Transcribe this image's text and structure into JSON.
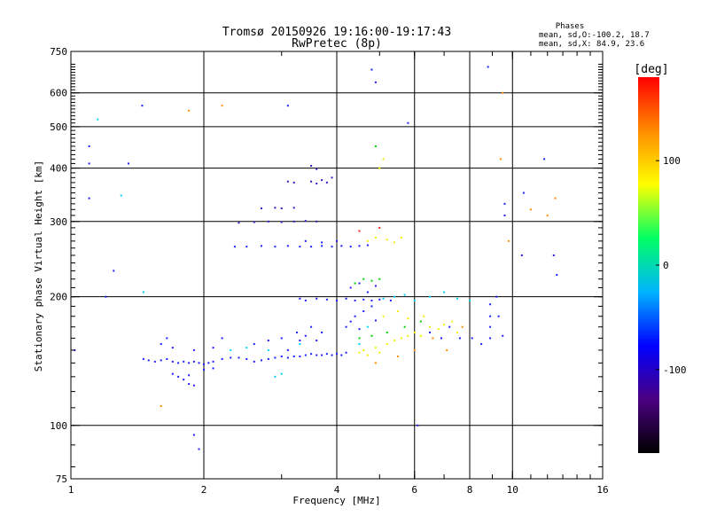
{
  "chart_data": {
    "type": "scatter",
    "title": "Tromsø 20150926 19:16:00-19:17:43",
    "subtitle": "RwPretec (8p)",
    "info_title": "Phases",
    "info_line1": "mean, sd,O:-100.2, 18.7",
    "info_line2": "mean, sd,X: 84.9, 23.6",
    "xlabel": "Frequency [MHz]",
    "ylabel": "Stationary phase Virtual Height [km]",
    "xscale": "log",
    "yscale": "log",
    "xlim": [
      1,
      16
    ],
    "ylim": [
      75,
      750
    ],
    "xticks": [
      1,
      2,
      4,
      6,
      8,
      10,
      16
    ],
    "yticks": [
      75,
      100,
      200,
      300,
      400,
      500,
      600,
      750
    ],
    "xgrid": [
      2,
      4,
      6,
      8,
      10
    ],
    "ygrid": [
      100,
      200,
      300,
      400,
      500,
      600
    ],
    "grid": true,
    "colorbar": {
      "label": "[deg]",
      "range": [
        -180,
        180
      ],
      "ticks": [
        100,
        0,
        -100
      ],
      "colors": [
        "#000000",
        "#4b0082",
        "#0000ff",
        "#00b4ff",
        "#00ff64",
        "#ffff00",
        "#ff8c00",
        "#ff0000"
      ]
    },
    "series": [
      {
        "color": "#1e1eff",
        "points": [
          [
            1.46,
            143
          ],
          [
            1.5,
            142
          ],
          [
            1.55,
            141
          ],
          [
            1.6,
            142
          ],
          [
            1.65,
            143
          ],
          [
            1.7,
            141
          ],
          [
            1.75,
            140
          ],
          [
            1.8,
            141
          ],
          [
            1.85,
            140
          ],
          [
            1.9,
            141
          ],
          [
            1.95,
            140
          ],
          [
            2.0,
            139
          ],
          [
            2.05,
            140
          ],
          [
            2.1,
            141
          ],
          [
            2.2,
            143
          ],
          [
            2.3,
            144
          ],
          [
            2.4,
            144
          ],
          [
            2.5,
            143
          ],
          [
            2.6,
            141
          ],
          [
            2.7,
            142
          ],
          [
            2.8,
            143
          ],
          [
            2.9,
            144
          ],
          [
            3.0,
            145
          ],
          [
            3.1,
            144
          ],
          [
            3.2,
            145
          ],
          [
            3.3,
            145
          ],
          [
            3.4,
            146
          ],
          [
            3.5,
            147
          ],
          [
            3.6,
            146
          ],
          [
            3.7,
            146
          ],
          [
            3.8,
            147
          ],
          [
            3.9,
            146
          ],
          [
            4.0,
            147
          ],
          [
            4.1,
            146
          ],
          [
            4.2,
            148
          ],
          [
            1.6,
            155
          ],
          [
            1.65,
            160
          ],
          [
            1.7,
            152
          ],
          [
            1.9,
            150
          ],
          [
            2.1,
            152
          ],
          [
            2.2,
            160
          ],
          [
            2.6,
            155
          ],
          [
            2.8,
            158
          ],
          [
            3.0,
            160
          ],
          [
            3.1,
            150
          ],
          [
            3.25,
            165
          ],
          [
            3.3,
            158
          ],
          [
            3.4,
            162
          ],
          [
            3.5,
            170
          ],
          [
            3.6,
            158
          ],
          [
            3.7,
            165
          ],
          [
            4.2,
            170
          ],
          [
            4.3,
            175
          ],
          [
            4.4,
            180
          ],
          [
            4.5,
            168
          ],
          [
            4.6,
            185
          ],
          [
            4.8,
            190
          ],
          [
            4.9,
            176
          ],
          [
            1.7,
            132
          ],
          [
            1.75,
            130
          ],
          [
            1.8,
            128
          ],
          [
            1.85,
            131
          ],
          [
            2.0,
            135
          ],
          [
            2.1,
            136
          ],
          [
            1.85,
            125
          ],
          [
            1.9,
            124
          ]
        ]
      },
      {
        "color": "#1e1eff",
        "points": [
          [
            3.3,
            198
          ],
          [
            3.4,
            196
          ],
          [
            3.6,
            198
          ],
          [
            3.8,
            197
          ],
          [
            4.0,
            196
          ],
          [
            4.2,
            198
          ],
          [
            4.4,
            196
          ],
          [
            4.6,
            197
          ],
          [
            4.8,
            196
          ],
          [
            5.0,
            197
          ],
          [
            5.3,
            196
          ],
          [
            4.3,
            210
          ],
          [
            4.5,
            215
          ],
          [
            4.7,
            205
          ],
          [
            4.9,
            212
          ]
        ]
      },
      {
        "color": "#1e1eff",
        "points": [
          [
            2.35,
            262
          ],
          [
            2.5,
            262
          ],
          [
            2.7,
            263
          ],
          [
            2.9,
            262
          ],
          [
            3.1,
            263
          ],
          [
            3.3,
            262
          ],
          [
            3.5,
            262
          ],
          [
            3.7,
            263
          ],
          [
            3.9,
            262
          ],
          [
            4.1,
            263
          ],
          [
            4.3,
            262
          ],
          [
            4.5,
            263
          ],
          [
            4.7,
            264
          ],
          [
            3.4,
            270
          ],
          [
            3.7,
            268
          ],
          [
            4.0,
            270
          ]
        ]
      },
      {
        "color": "#3c14c8",
        "points": [
          [
            2.4,
            298
          ],
          [
            2.6,
            299
          ],
          [
            2.8,
            300
          ],
          [
            3.0,
            299
          ],
          [
            3.2,
            300
          ],
          [
            3.4,
            301
          ],
          [
            3.6,
            300
          ],
          [
            2.7,
            322
          ],
          [
            2.9,
            323
          ],
          [
            3.0,
            322
          ],
          [
            3.2,
            323
          ],
          [
            3.1,
            372
          ],
          [
            3.2,
            370
          ],
          [
            3.5,
            372
          ],
          [
            3.6,
            368
          ],
          [
            3.7,
            375
          ],
          [
            3.8,
            370
          ],
          [
            3.9,
            380
          ],
          [
            3.5,
            405
          ],
          [
            3.6,
            398
          ]
        ]
      },
      {
        "color": "#f0f000",
        "points": [
          [
            4.5,
            148
          ],
          [
            4.6,
            150
          ],
          [
            4.7,
            146
          ],
          [
            4.9,
            152
          ],
          [
            5.0,
            148
          ],
          [
            5.2,
            155
          ],
          [
            5.4,
            158
          ],
          [
            5.6,
            160
          ],
          [
            5.8,
            162
          ],
          [
            6.0,
            165
          ],
          [
            6.2,
            162
          ],
          [
            6.5,
            170
          ],
          [
            6.8,
            168
          ],
          [
            7.0,
            172
          ],
          [
            7.3,
            175
          ],
          [
            5.1,
            180
          ],
          [
            5.5,
            185
          ],
          [
            5.8,
            178
          ],
          [
            6.3,
            180
          ],
          [
            7.5,
            165
          ],
          [
            4.7,
            270
          ],
          [
            4.9,
            275
          ],
          [
            5.2,
            272
          ],
          [
            5.4,
            268
          ],
          [
            5.6,
            275
          ],
          [
            5.0,
            400
          ],
          [
            5.1,
            420
          ]
        ]
      },
      {
        "color": "#00d2ff",
        "points": [
          [
            2.3,
            150
          ],
          [
            2.5,
            152
          ],
          [
            2.8,
            150
          ],
          [
            3.0,
            132
          ],
          [
            2.9,
            130
          ],
          [
            3.3,
            155
          ],
          [
            4.5,
            155
          ],
          [
            4.7,
            170
          ],
          [
            5.1,
            198
          ],
          [
            5.4,
            200
          ],
          [
            5.7,
            202
          ],
          [
            6.0,
            196
          ],
          [
            6.5,
            200
          ],
          [
            7.0,
            205
          ],
          [
            7.5,
            198
          ],
          [
            8.0,
            196
          ],
          [
            1.46,
            205
          ],
          [
            1.3,
            345
          ],
          [
            1.15,
            520
          ]
        ]
      },
      {
        "color": "#00d200",
        "points": [
          [
            4.5,
            160
          ],
          [
            4.8,
            162
          ],
          [
            5.2,
            165
          ],
          [
            5.7,
            170
          ],
          [
            6.2,
            175
          ],
          [
            4.4,
            215
          ],
          [
            4.6,
            220
          ],
          [
            4.8,
            218
          ],
          [
            5.0,
            220
          ],
          [
            4.9,
            450
          ]
        ]
      },
      {
        "color": "#ff8c00",
        "points": [
          [
            1.6,
            111
          ],
          [
            4.9,
            140
          ],
          [
            5.5,
            145
          ],
          [
            6.0,
            150
          ],
          [
            6.6,
            160
          ],
          [
            7.1,
            150
          ],
          [
            7.7,
            170
          ],
          [
            9.5,
            600
          ],
          [
            9.4,
            420
          ],
          [
            9.8,
            270
          ],
          [
            11,
            320
          ],
          [
            12,
            310
          ],
          [
            12.5,
            340
          ],
          [
            1.85,
            545
          ],
          [
            2.2,
            560
          ]
        ]
      },
      {
        "color": "#ff1e1e",
        "points": [
          [
            4.5,
            285
          ],
          [
            5.0,
            290
          ]
        ]
      },
      {
        "color": "#1e1eff",
        "points": [
          [
            1.1,
            450
          ],
          [
            1.1,
            410
          ],
          [
            1.1,
            340
          ],
          [
            1.25,
            230
          ],
          [
            1.35,
            410
          ],
          [
            1.45,
            560
          ],
          [
            1.9,
            95
          ],
          [
            1.95,
            88
          ],
          [
            3.1,
            560
          ],
          [
            4.8,
            680
          ],
          [
            4.9,
            635
          ],
          [
            5.8,
            510
          ],
          [
            6.1,
            100
          ],
          [
            8.8,
            690
          ],
          [
            9.6,
            330
          ],
          [
            9.6,
            310
          ],
          [
            9.2,
            200
          ],
          [
            9.3,
            180
          ],
          [
            9.5,
            162
          ],
          [
            10.5,
            250
          ],
          [
            10.6,
            350
          ],
          [
            11.8,
            420
          ],
          [
            12.6,
            225
          ],
          [
            12.4,
            250
          ],
          [
            1.2,
            200
          ],
          [
            1.02,
            150
          ]
        ]
      },
      {
        "color": "#1e1eff",
        "points": [
          [
            8.9,
            160
          ],
          [
            8.9,
            170
          ],
          [
            8.9,
            180
          ],
          [
            8.9,
            192
          ],
          [
            8.1,
            160
          ],
          [
            8.5,
            155
          ],
          [
            7.6,
            160
          ],
          [
            7.2,
            170
          ],
          [
            6.9,
            160
          ],
          [
            6.5,
            165
          ]
        ]
      }
    ]
  }
}
